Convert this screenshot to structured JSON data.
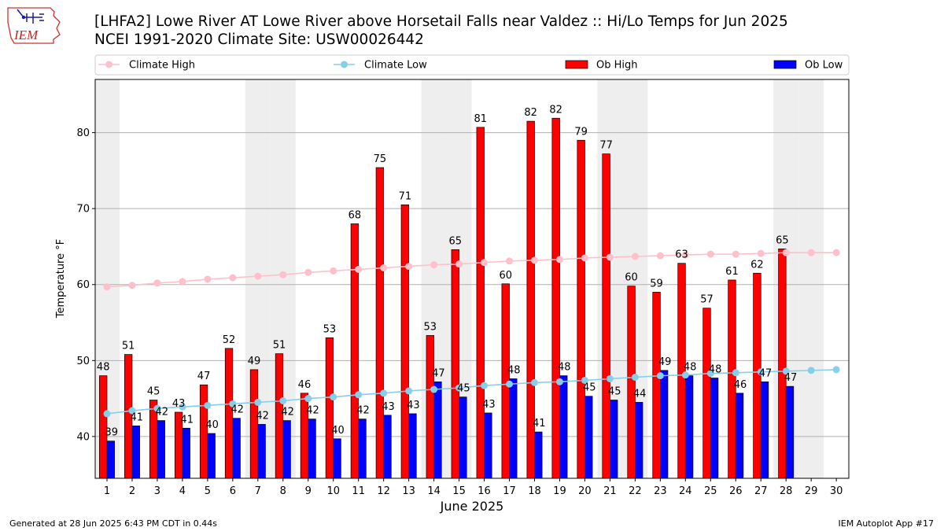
{
  "title_line1": "[LHFA2] Lowe River  AT Lowe River above Horsetail Falls near Valdez :: Hi/Lo Temps for Jun 2025",
  "title_line2": "NCEI 1991-2020 Climate Site: USW00026442",
  "logo_text": "IEM",
  "footer_left": "Generated at 28 Jun 2025 6:43 PM CDT in 0.44s",
  "footer_right": "IEM Autoplot App #17",
  "chart_data": {
    "type": "bar",
    "xlabel": "June 2025",
    "ylabel": "Temperature °F",
    "ylim": [
      34.5,
      87
    ],
    "yticks": [
      40,
      50,
      60,
      70,
      80
    ],
    "xticks": [
      1,
      2,
      3,
      4,
      5,
      6,
      7,
      8,
      9,
      10,
      11,
      12,
      13,
      14,
      15,
      16,
      17,
      18,
      19,
      20,
      21,
      22,
      23,
      24,
      25,
      26,
      27,
      28,
      29,
      30
    ],
    "grid": "y",
    "legend_position": "top",
    "weekend_days": [
      1,
      7,
      8,
      14,
      15,
      21,
      22,
      28,
      29
    ],
    "colors": {
      "climate_high": "#ffc0cb",
      "climate_low": "#87ceeb",
      "ob_high": "#ff0000",
      "ob_low": "#0000ff",
      "weekend_shade": "#eeeeee"
    },
    "series": [
      {
        "name": "Climate High",
        "kind": "line",
        "values": [
          59.7,
          59.9,
          60.2,
          60.4,
          60.7,
          60.9,
          61.1,
          61.3,
          61.6,
          61.8,
          62.0,
          62.2,
          62.4,
          62.6,
          62.7,
          62.9,
          63.1,
          63.2,
          63.3,
          63.5,
          63.6,
          63.7,
          63.8,
          63.9,
          64.0,
          64.0,
          64.1,
          64.2,
          64.2,
          64.2
        ]
      },
      {
        "name": "Climate Low",
        "kind": "line",
        "values": [
          43.0,
          43.4,
          43.7,
          43.9,
          44.1,
          44.3,
          44.5,
          44.7,
          45.0,
          45.2,
          45.5,
          45.7,
          46.0,
          46.2,
          46.4,
          46.7,
          46.9,
          47.1,
          47.2,
          47.4,
          47.6,
          47.8,
          48.0,
          48.1,
          48.3,
          48.4,
          48.5,
          48.6,
          48.7,
          48.8
        ]
      },
      {
        "name": "Ob High",
        "kind": "bar",
        "values": [
          48,
          51,
          45,
          43,
          47,
          52,
          49,
          51,
          46,
          53,
          68,
          75,
          71,
          53,
          65,
          81,
          60,
          82,
          82,
          79,
          77,
          60,
          59,
          63,
          57,
          61,
          62,
          65
        ],
        "plotted": [
          48.0,
          50.8,
          44.8,
          43.2,
          46.8,
          51.6,
          48.8,
          50.9,
          45.7,
          53.0,
          68.0,
          75.4,
          70.5,
          53.3,
          64.6,
          80.7,
          60.1,
          81.5,
          81.9,
          79.0,
          77.2,
          59.8,
          59.0,
          62.8,
          56.9,
          60.6,
          61.5,
          64.7
        ]
      },
      {
        "name": "Ob Low",
        "kind": "bar",
        "values": [
          39,
          41,
          42,
          41,
          40,
          42,
          42,
          42,
          42,
          40,
          42,
          43,
          43,
          47,
          45,
          43,
          48,
          41,
          48,
          45,
          45,
          44,
          49,
          48,
          48,
          46,
          47,
          47
        ],
        "plotted": [
          39.4,
          41.4,
          42.1,
          41.1,
          40.4,
          42.4,
          41.6,
          42.1,
          42.3,
          39.7,
          42.3,
          42.8,
          43.0,
          47.2,
          45.2,
          43.1,
          47.6,
          40.6,
          48.0,
          45.3,
          44.8,
          44.5,
          48.7,
          48.0,
          47.7,
          45.7,
          47.2,
          46.6
        ]
      }
    ]
  }
}
